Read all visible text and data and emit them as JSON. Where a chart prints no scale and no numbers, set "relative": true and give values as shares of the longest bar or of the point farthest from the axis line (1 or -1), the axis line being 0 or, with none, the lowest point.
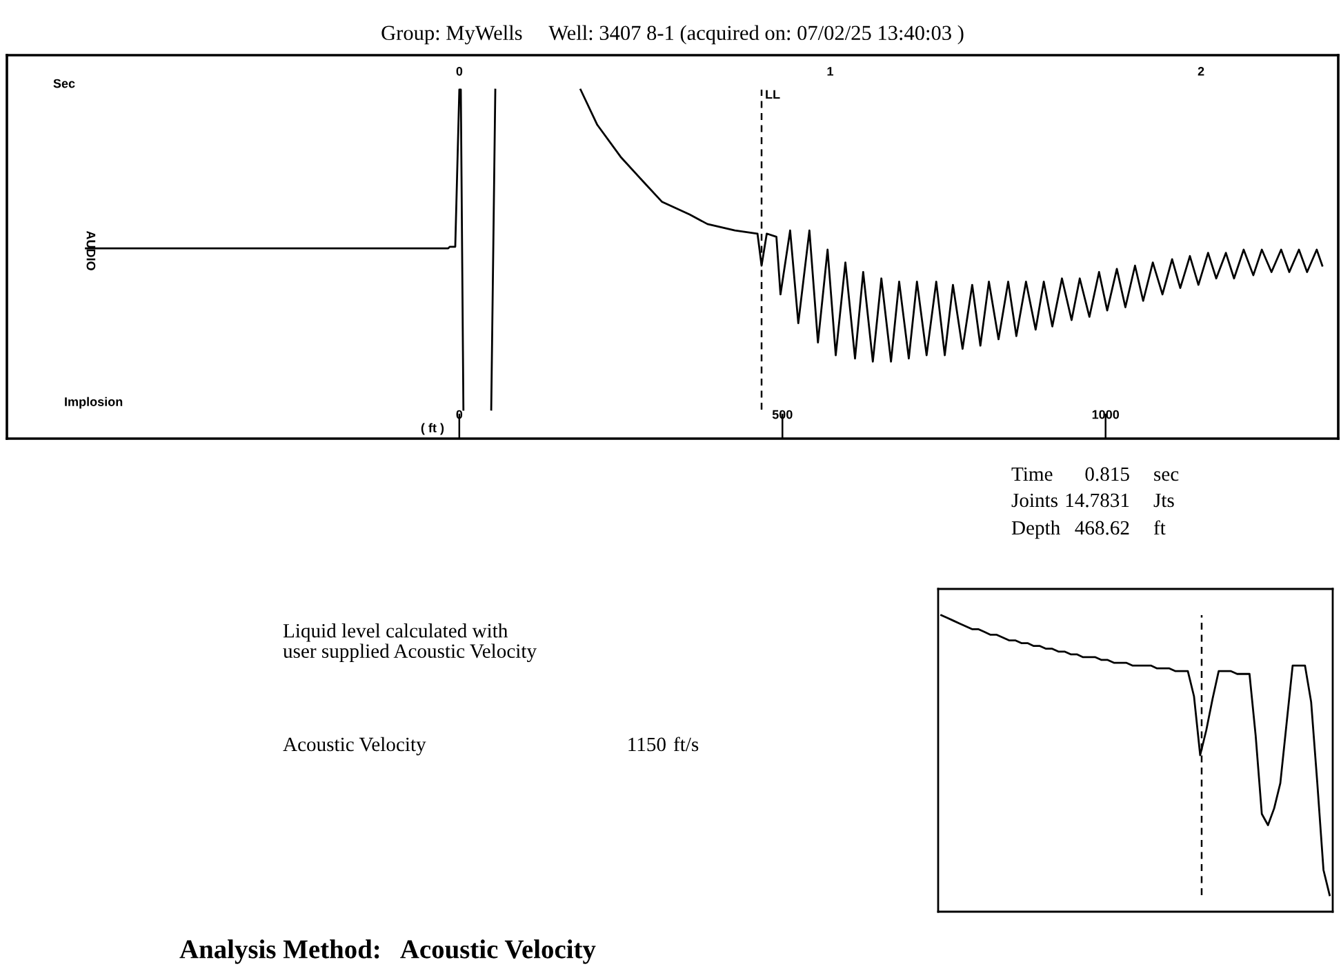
{
  "chart_data": [
    {
      "type": "line",
      "title": "Group: MyWells     Well: 3407 8-1 (acquired on: 07/02/25 13:40:03 )",
      "xlabel": "Sec",
      "x2label": "( ft )",
      "ylabel": "AUDIO",
      "relative": true,
      "xlim": [
        -1.22,
        2.37
      ],
      "xticks": [
        0,
        1,
        2
      ],
      "x2lim": [
        -700,
        1360
      ],
      "x2ticks": [
        0,
        500,
        1000
      ],
      "annotations": [
        "Implosion"
      ],
      "ref_lines": [
        {
          "axis": "x",
          "value": 0.815,
          "label": "LL",
          "line_style": "dashed",
          "color": "#000000"
        }
      ],
      "series": [
        {
          "color": "#000000",
          "x": [
            -1.007,
            -0.03,
            -0.026,
            -0.011,
            0,
            0.004,
            0.011,
            0.05,
            0.086,
            0.097,
            0.2,
            0.327,
            0.372,
            0.435,
            0.498,
            0.546,
            0.621,
            0.669,
            0.743,
            0.804,
            0.815,
            0.829,
            0.855,
            0.866,
            0.892,
            0.914,
            0.944,
            0.967,
            0.993,
            1.015,
            1.041,
            1.067,
            1.089,
            1.115,
            1.138,
            1.164,
            1.186,
            1.212,
            1.234,
            1.26,
            1.286,
            1.309,
            1.331,
            1.357,
            1.383,
            1.405,
            1.428,
            1.454,
            1.48,
            1.502,
            1.528,
            1.554,
            1.576,
            1.599,
            1.625,
            1.651,
            1.673,
            1.699,
            1.725,
            1.747,
            1.773,
            1.796,
            1.822,
            1.844,
            1.87,
            1.896,
            1.922,
            1.944,
            1.97,
            1.993,
            2.019,
            2.041,
            2.067,
            2.089,
            2.115,
            2.141,
            2.164,
            2.19,
            2.216,
            2.238,
            2.264,
            2.286,
            2.312,
            2.327
          ],
          "values": [
            0.504,
            0.504,
            0.509,
            0.509,
            1,
            1,
            0,
            null,
            0,
            1,
            null,
            1,
            0.89,
            0.79,
            0.71,
            0.65,
            0.61,
            0.58,
            0.56,
            0.55,
            0.45,
            0.55,
            0.54,
            0.36,
            0.56,
            0.27,
            0.56,
            0.21,
            0.5,
            0.17,
            0.46,
            0.16,
            0.43,
            0.15,
            0.41,
            0.15,
            0.4,
            0.16,
            0.4,
            0.17,
            0.4,
            0.17,
            0.39,
            0.19,
            0.39,
            0.2,
            0.4,
            0.22,
            0.4,
            0.23,
            0.4,
            0.25,
            0.4,
            0.26,
            0.41,
            0.28,
            0.41,
            0.29,
            0.43,
            0.31,
            0.44,
            0.32,
            0.45,
            0.34,
            0.46,
            0.36,
            0.47,
            0.38,
            0.48,
            0.39,
            0.49,
            0.41,
            0.49,
            0.41,
            0.5,
            0.42,
            0.5,
            0.43,
            0.5,
            0.43,
            0.5,
            0.43,
            0.5,
            0.45
          ]
        }
      ]
    },
    {
      "type": "other",
      "annotations": [
        "Time",
        "0.815",
        "sec",
        "Joints",
        "14.7831",
        "Jts",
        "Depth",
        "468.62",
        "ft"
      ]
    },
    {
      "type": "other",
      "annotations": [
        "Liquid level calculated with\nuser supplied Acoustic Velocity",
        "Acoustic Velocity",
        "1150",
        "ft/s",
        "Analysis Method:   Acoustic Velocity"
      ]
    },
    {
      "type": "line",
      "relative": true,
      "categories": [
        null,
        null,
        null,
        null,
        null,
        null,
        null,
        null,
        null,
        null,
        null,
        null,
        null,
        null,
        null,
        null,
        null,
        null,
        null,
        null,
        null,
        null,
        null,
        null,
        null,
        null,
        null,
        null,
        null,
        null,
        null,
        null,
        null,
        null,
        null,
        null,
        null,
        null,
        null,
        null,
        null,
        null,
        null,
        null,
        null,
        null,
        null,
        null,
        null,
        null,
        null,
        null,
        null,
        null,
        null,
        null,
        null,
        null,
        null,
        null,
        null,
        null,
        null,
        null
      ],
      "series": [
        {
          "color": "#000000",
          "values": [
            1.0,
            0.99,
            0.98,
            0.97,
            0.96,
            0.95,
            0.95,
            0.94,
            0.93,
            0.93,
            0.92,
            0.91,
            0.91,
            0.9,
            0.9,
            0.89,
            0.89,
            0.88,
            0.88,
            0.87,
            0.87,
            0.86,
            0.86,
            0.85,
            0.85,
            0.85,
            0.84,
            0.84,
            0.83,
            0.83,
            0.83,
            0.82,
            0.82,
            0.82,
            0.82,
            0.81,
            0.81,
            0.81,
            0.8,
            0.8,
            0.8,
            0.71,
            0.5,
            0.59,
            0.7,
            0.8,
            0.8,
            0.8,
            0.79,
            0.79,
            0.79,
            0.57,
            0.29,
            0.25,
            0.31,
            0.4,
            0.61,
            0.82,
            0.82,
            0.82,
            0.69,
            0.4,
            0.09,
            0
          ]
        }
      ]
    }
  ]
}
